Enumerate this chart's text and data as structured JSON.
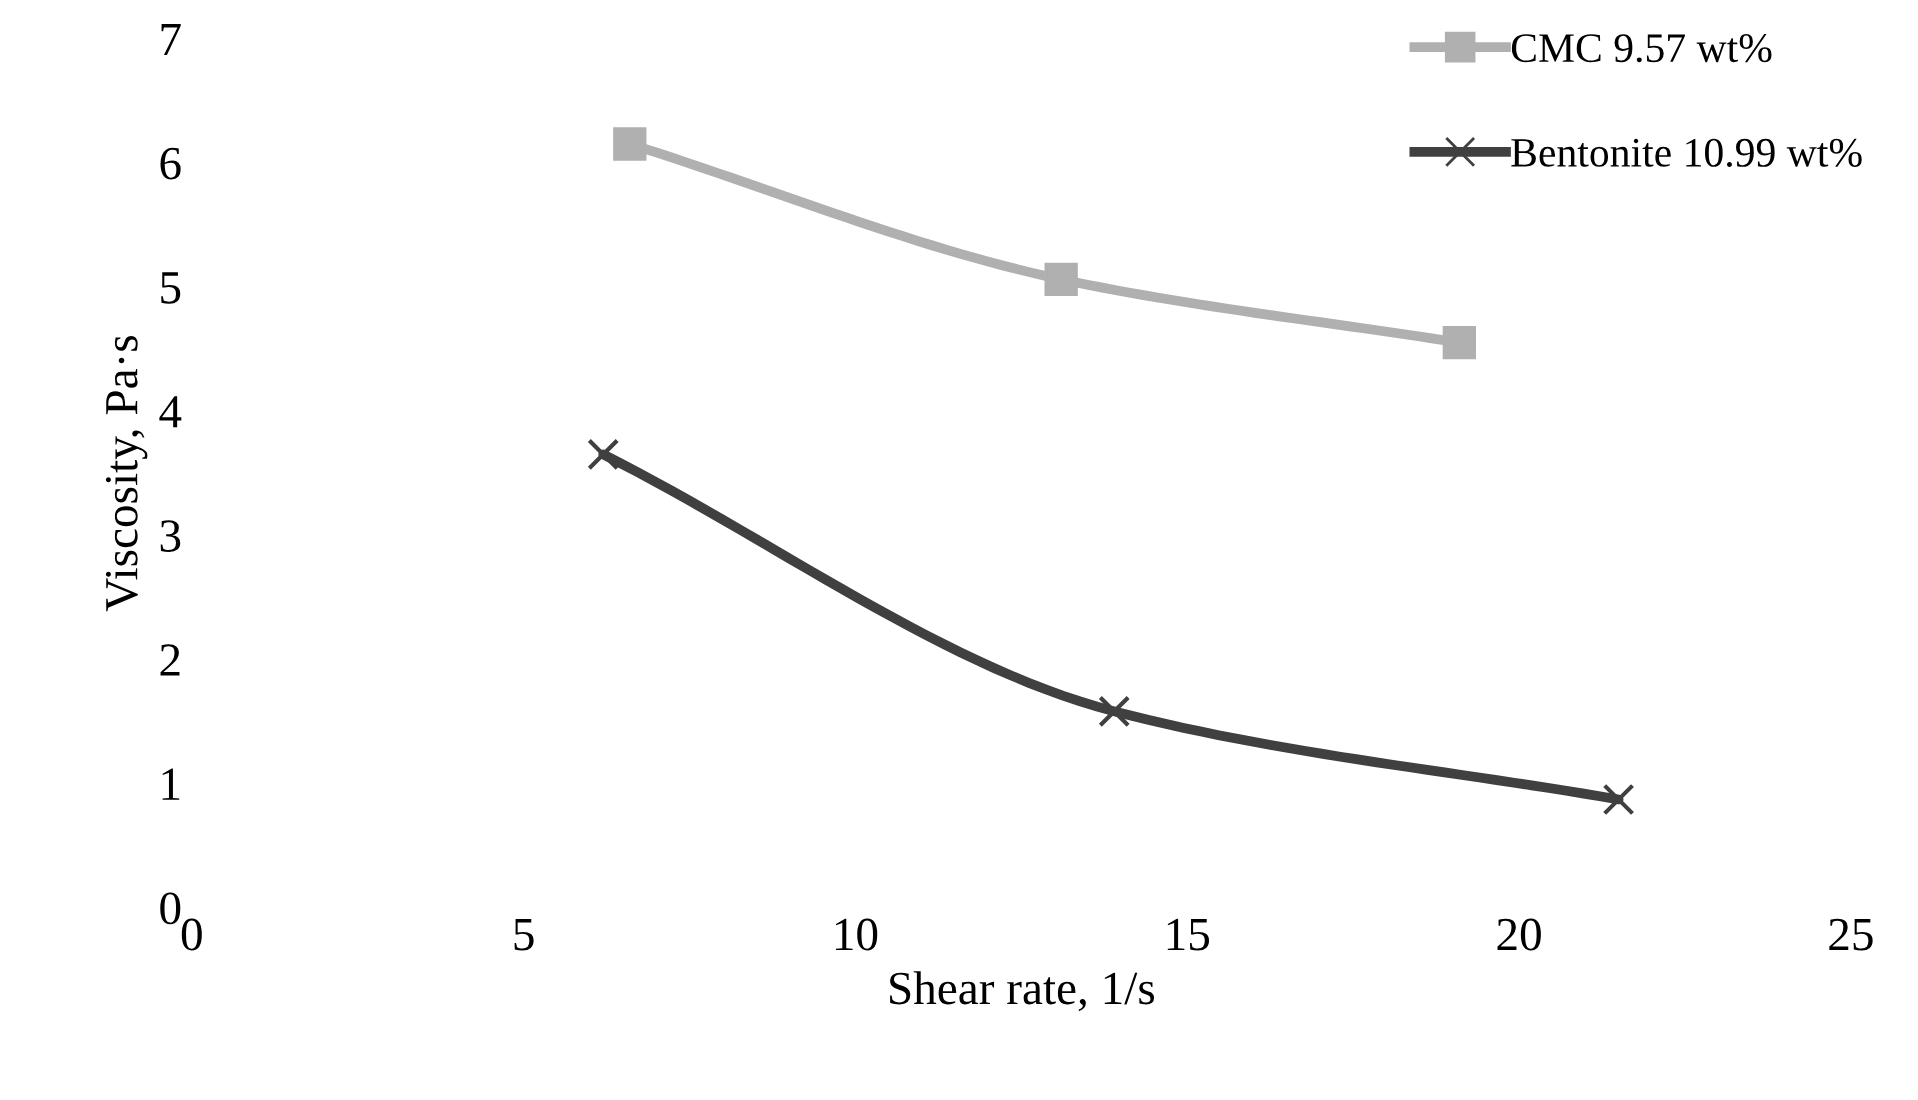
{
  "chart_data": {
    "type": "line",
    "xlabel": "Shear rate, 1/s",
    "ylabel": "Viscosity, Pa·s",
    "xlim": [
      0,
      25
    ],
    "xticks": [
      0,
      5,
      10,
      15,
      20,
      25
    ],
    "ylim": [
      0,
      7
    ],
    "yticks": [
      0,
      1,
      2,
      3,
      4,
      5,
      6,
      7
    ],
    "grid": false,
    "legend": "top right",
    "series": [
      {
        "name": "CMC 9.57 wt%",
        "color": "#b0b0b0",
        "marker": "square",
        "x": [
          6.6,
          13.1,
          19.1
        ],
        "values": [
          6.15,
          5.06,
          4.55
        ]
      },
      {
        "name": "Bentonite 10.99 wt%",
        "color": "#404040",
        "marker": "cross",
        "x": [
          6.2,
          13.9,
          21.5
        ],
        "values": [
          3.65,
          1.58,
          0.87
        ]
      }
    ]
  }
}
